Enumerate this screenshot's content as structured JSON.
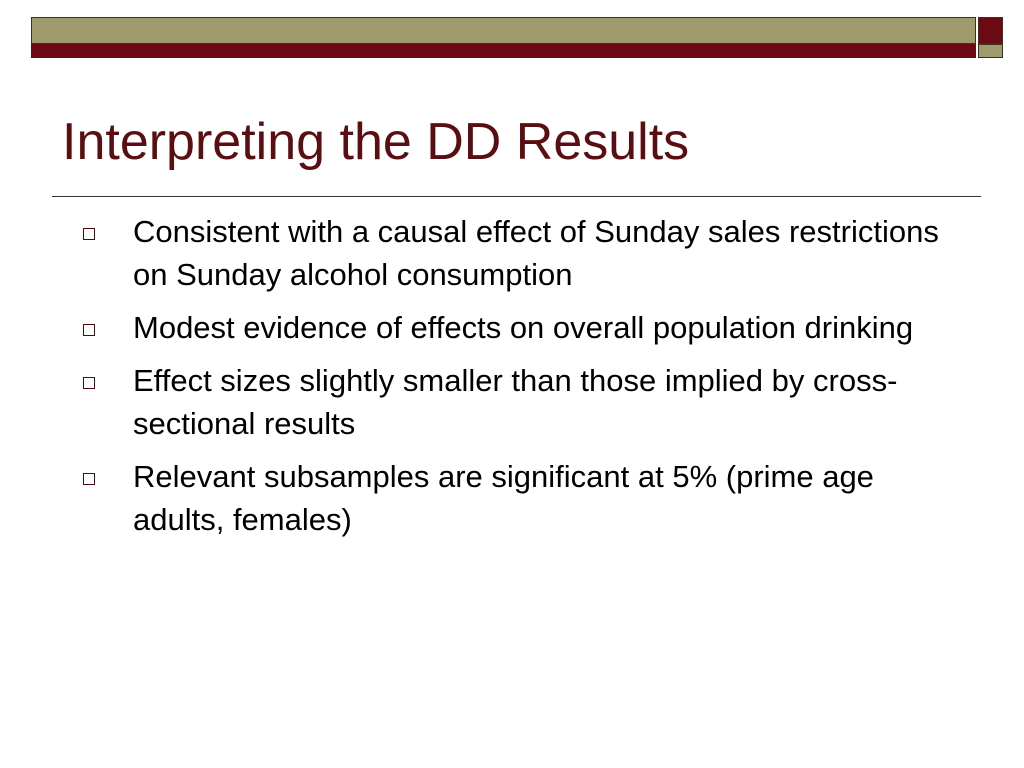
{
  "slide": {
    "title": "Interpreting the DD Results",
    "bullets": [
      "Consistent with a causal effect of Sunday sales restrictions on Sunday alcohol consumption",
      "Modest evidence of effects on overall population drinking",
      "Effect sizes slightly smaller than those implied by cross-sectional results",
      "Relevant subsamples are significant at 5% (prime age adults, females)"
    ]
  }
}
